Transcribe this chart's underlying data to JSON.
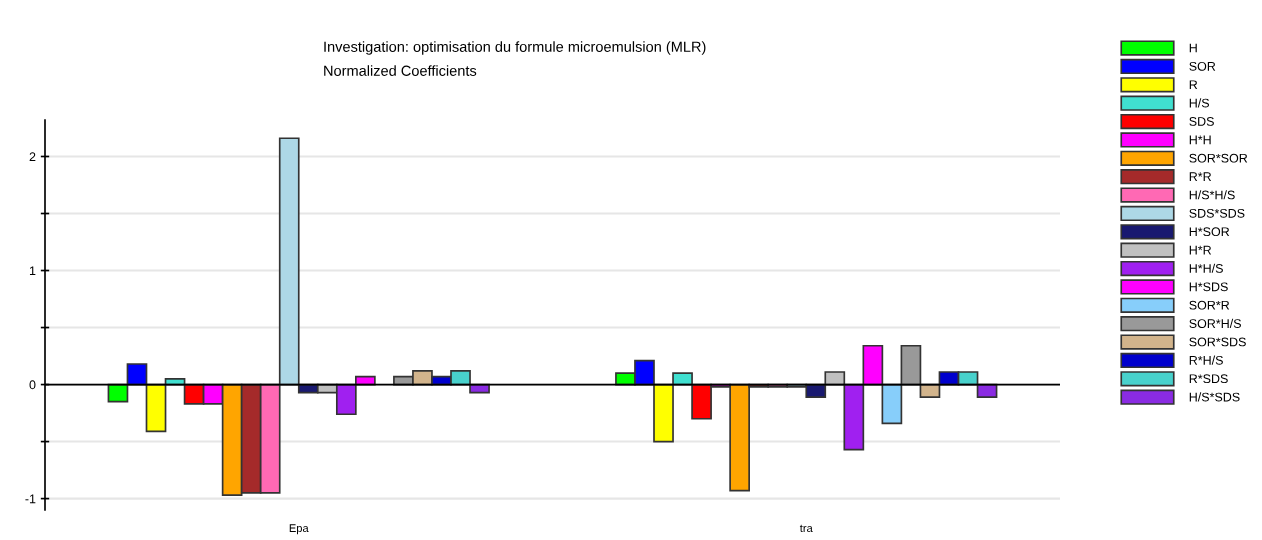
{
  "chart_data": {
    "type": "bar",
    "title": "Investigation: optimisation du formule microemulsion (MLR)",
    "subtitle": "Normalized Coefficients",
    "categories": [
      "Epa",
      "tra"
    ],
    "series": [
      {
        "name": "H",
        "color": "#00ff00",
        "values": [
          -0.15,
          0.1
        ]
      },
      {
        "name": "SOR",
        "color": "#0000ff",
        "values": [
          0.18,
          0.21
        ]
      },
      {
        "name": "R",
        "color": "#ffff00",
        "values": [
          -0.41,
          -0.5
        ]
      },
      {
        "name": "H/S",
        "color": "#40e0d0",
        "values": [
          0.05,
          0.1
        ]
      },
      {
        "name": "SDS",
        "color": "#ff0000",
        "values": [
          -0.17,
          -0.3
        ]
      },
      {
        "name": "H*H",
        "color": "#ff00ff",
        "values": [
          -0.17,
          -0.02
        ]
      },
      {
        "name": "SOR*SOR",
        "color": "#ffa500",
        "values": [
          -0.97,
          -0.93
        ]
      },
      {
        "name": "R*R",
        "color": "#a52a2a",
        "values": [
          -0.95,
          -0.02
        ]
      },
      {
        "name": "H/S*H/S",
        "color": "#ff69b4",
        "values": [
          -0.95,
          -0.02
        ]
      },
      {
        "name": "SDS*SDS",
        "color": "#add8e6",
        "values": [
          2.16,
          -0.02
        ]
      },
      {
        "name": "H*SOR",
        "color": "#191970",
        "values": [
          -0.07,
          -0.11
        ]
      },
      {
        "name": "H*R",
        "color": "#c0c0c0",
        "values": [
          -0.07,
          0.11
        ]
      },
      {
        "name": "H*H/S",
        "color": "#a020f0",
        "values": [
          -0.26,
          -0.57
        ]
      },
      {
        "name": "H*SDS",
        "color": "#ff00ff",
        "values": [
          0.07,
          0.34
        ]
      },
      {
        "name": "SOR*R",
        "color": "#87cefa",
        "values": [
          null,
          -0.34
        ]
      },
      {
        "name": "SOR*H/S",
        "color": "#999999",
        "values": [
          0.07,
          0.34
        ]
      },
      {
        "name": "SOR*SDS",
        "color": "#d2b48c",
        "values": [
          0.12,
          -0.11
        ]
      },
      {
        "name": "R*H/S",
        "color": "#0000cd",
        "values": [
          0.07,
          0.11
        ]
      },
      {
        "name": "R*SDS",
        "color": "#48d1cc",
        "values": [
          0.12,
          0.11
        ]
      },
      {
        "name": "H/S*SDS",
        "color": "#8a2be2",
        "values": [
          -0.07,
          -0.11
        ]
      }
    ],
    "ylim": [
      -1.1,
      2.32
    ],
    "yticks": [
      -1,
      {
        "value": -0.5,
        "label": null
      },
      0,
      {
        "value": 0.5,
        "label": null
      },
      1,
      {
        "value": 1.5,
        "label": null
      },
      2
    ],
    "grid": "y",
    "legend": "right"
  }
}
